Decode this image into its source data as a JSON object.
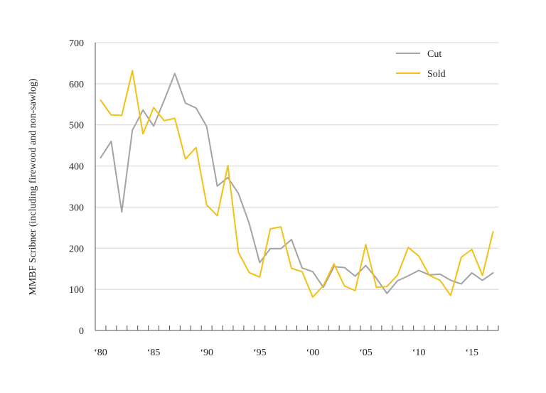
{
  "chart_data": {
    "type": "line",
    "ylabel": "MMBF Scribner (including firewood and non-sawlog)",
    "xlabel": "",
    "title": "",
    "ylim": [
      0,
      700
    ],
    "yticks": [
      0,
      100,
      200,
      300,
      400,
      500,
      600,
      700
    ],
    "xlim": [
      1980,
      2017
    ],
    "xticks": [
      {
        "value": 1980,
        "label": "‘80"
      },
      {
        "value": 1985,
        "label": "‘85"
      },
      {
        "value": 1990,
        "label": "‘90"
      },
      {
        "value": 1995,
        "label": "‘95"
      },
      {
        "value": 2000,
        "label": "‘00"
      },
      {
        "value": 2005,
        "label": "‘05"
      },
      {
        "value": 2010,
        "label": "‘10"
      },
      {
        "value": 2015,
        "label": "‘15"
      }
    ],
    "grid": true,
    "legend_position": "top-right",
    "x": [
      1980,
      1981,
      1982,
      1983,
      1984,
      1985,
      1986,
      1987,
      1988,
      1989,
      1990,
      1991,
      1992,
      1993,
      1994,
      1995,
      1996,
      1997,
      1998,
      1999,
      2000,
      2001,
      2002,
      2003,
      2004,
      2005,
      2006,
      2007,
      2008,
      2009,
      2010,
      2011,
      2012,
      2013,
      2014,
      2015,
      2016,
      2017
    ],
    "series": [
      {
        "name": "Cut",
        "color": "#a3a3a3",
        "values": [
          420,
          460,
          288,
          487,
          536,
          497,
          560,
          625,
          553,
          541,
          496,
          351,
          372,
          333,
          261,
          165,
          199,
          199,
          221,
          152,
          143,
          105,
          155,
          153,
          132,
          158,
          127,
          90,
          121,
          133,
          146,
          135,
          137,
          122,
          113,
          140,
          122,
          140
        ]
      },
      {
        "name": "Sold",
        "color": "#f2c114",
        "values": [
          560,
          524,
          523,
          632,
          478,
          542,
          510,
          516,
          417,
          445,
          305,
          279,
          401,
          190,
          141,
          130,
          247,
          252,
          151,
          143,
          81,
          109,
          162,
          108,
          97,
          209,
          105,
          107,
          135,
          202,
          181,
          134,
          122,
          85,
          178,
          197,
          134,
          240
        ]
      }
    ]
  }
}
